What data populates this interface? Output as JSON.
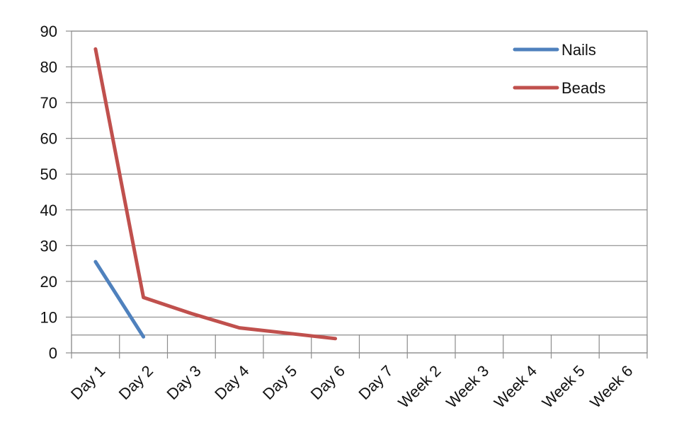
{
  "chart_data": {
    "type": "line",
    "categories": [
      "Day 1",
      "Day 2",
      "Day 3",
      "Day 4",
      "Day 5",
      "Day 6",
      "Day 7",
      "Week 2",
      "Week 3",
      "Week 4",
      "Week 5",
      "Week 6"
    ],
    "series": [
      {
        "name": "Nails",
        "color": "#4F81BD",
        "values": [
          25.5,
          4.5,
          null,
          null,
          null,
          null,
          null,
          null,
          null,
          null,
          null,
          null
        ]
      },
      {
        "name": "Beads",
        "color": "#C0504D",
        "values": [
          85,
          15.5,
          11,
          7,
          5.5,
          4,
          null,
          null,
          null,
          null,
          null,
          null
        ]
      }
    ],
    "ylim": [
      0,
      90
    ],
    "yticks": [
      0,
      10,
      20,
      30,
      40,
      50,
      60,
      70,
      80,
      90
    ],
    "extra_hline": 5,
    "grid": true,
    "legend_position": "top-right",
    "title": "",
    "xlabel": "",
    "ylabel": ""
  }
}
